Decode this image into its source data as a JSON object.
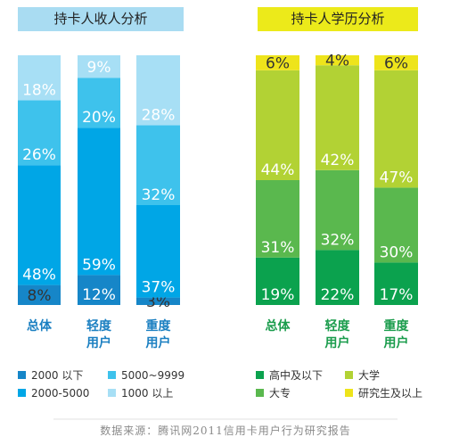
{
  "chart_data": [
    {
      "type": "bar",
      "stacked": true,
      "percent": true,
      "title": "持卡人收人分析",
      "categories": [
        "总体",
        "轻度用户",
        "重度用户"
      ],
      "category_lines": [
        [
          "总体"
        ],
        [
          "轻度",
          "用户"
        ],
        [
          "重度",
          "用户"
        ]
      ],
      "series": [
        {
          "name": "2000 以下",
          "color": "#1686c8",
          "values": [
            8,
            12,
            3
          ],
          "labels": [
            "8%",
            "12%",
            "3%"
          ]
        },
        {
          "name": "2000-5000",
          "color": "#00a6e6",
          "values": [
            48,
            59,
            37
          ],
          "labels": [
            "48%",
            "59%",
            "37%"
          ]
        },
        {
          "name": "5000~9999",
          "color": "#3ec2ec",
          "values": [
            26,
            20,
            32
          ],
          "labels": [
            "26%",
            "20%",
            "32%"
          ]
        },
        {
          "name": "1000 以上",
          "color": "#a7dff5",
          "values": [
            18,
            9,
            28
          ],
          "labels": [
            "18%",
            "9%",
            "28%"
          ]
        }
      ],
      "ylim": [
        0,
        100
      ],
      "legend_position": "bottom"
    },
    {
      "type": "bar",
      "stacked": true,
      "percent": true,
      "title": "持卡人学历分析",
      "categories": [
        "总体",
        "轻度用户",
        "重度用户"
      ],
      "category_lines": [
        [
          "总体"
        ],
        [
          "轻度",
          "用户"
        ],
        [
          "重度",
          "用户"
        ]
      ],
      "series": [
        {
          "name": "高中及以下",
          "color": "#0ba24e",
          "values": [
            19,
            22,
            17
          ],
          "labels": [
            "19%",
            "22%",
            "17%"
          ]
        },
        {
          "name": "大专",
          "color": "#5ab84e",
          "values": [
            31,
            32,
            30
          ],
          "labels": [
            "31%",
            "32%",
            "30%"
          ]
        },
        {
          "name": "大学",
          "color": "#b2d234",
          "values": [
            44,
            42,
            47
          ],
          "labels": [
            "44%",
            "42%",
            "47%"
          ]
        },
        {
          "name": "研究生及以上",
          "color": "#eee41b",
          "values": [
            6,
            4,
            6
          ],
          "labels": [
            "6%",
            "4%",
            "6%"
          ]
        }
      ],
      "ylim": [
        0,
        100
      ],
      "legend_position": "bottom"
    }
  ],
  "theme": {
    "left_title_bg": "#a9dcf2",
    "right_title_bg": "#ecea1a",
    "left_category_color": "#1a7fc1",
    "right_category_color": "#1a9c4c"
  },
  "source": "数据来源：腾讯网2011信用卡用户行为研究报告"
}
